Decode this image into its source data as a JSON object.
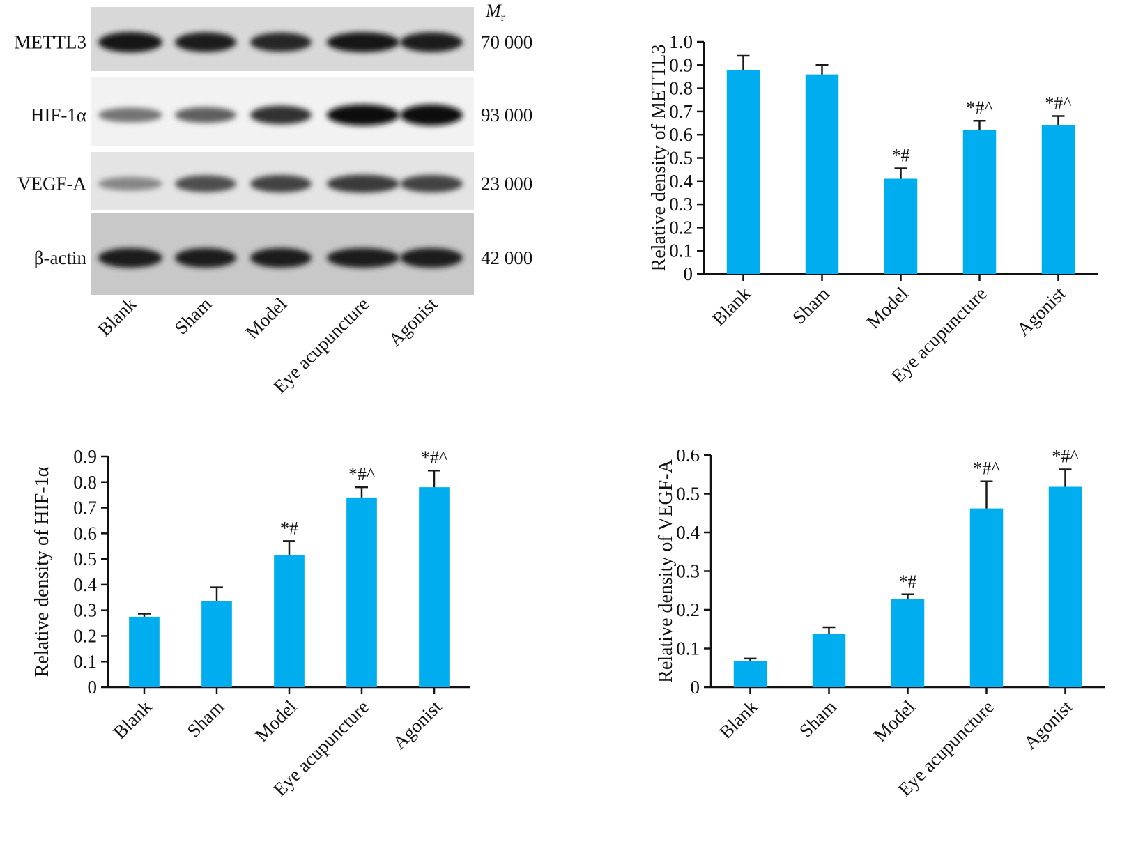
{
  "blot": {
    "mr_label": "M",
    "mr_sub": "r",
    "bands": [
      {
        "label": "METTL3",
        "mr": "70 000",
        "intensity": [
          0.95,
          0.9,
          0.85,
          0.92,
          0.9
        ]
      },
      {
        "label": "HIF-1α",
        "mr": "93 000",
        "intensity": [
          0.45,
          0.55,
          0.8,
          1.0,
          1.0
        ]
      },
      {
        "label": "VEGF-A",
        "mr": "23 000",
        "intensity": [
          0.35,
          0.65,
          0.7,
          0.75,
          0.7
        ]
      },
      {
        "label": "β-actin",
        "mr": "42 000",
        "intensity": [
          0.9,
          0.9,
          0.9,
          0.9,
          0.9
        ]
      }
    ],
    "lanes": [
      "Blank",
      "Sham",
      "Model",
      "Eye acupuncture",
      "Agonist"
    ]
  },
  "colors": {
    "bar": "#00aeef",
    "error": "#1a1a1a"
  },
  "chart_data": [
    {
      "id": "mettl3",
      "type": "bar",
      "categories": [
        "Blank",
        "Sham",
        "Model",
        "Eye acupuncture",
        "Agonist"
      ],
      "values": [
        0.88,
        0.86,
        0.41,
        0.62,
        0.64
      ],
      "errors": [
        0.06,
        0.04,
        0.045,
        0.04,
        0.04
      ],
      "annotations": [
        "",
        "",
        "*#",
        "*#^",
        "*#^"
      ],
      "ylabel": "Relative density of METTL3",
      "ylim": [
        0,
        1.0
      ],
      "yticks": [
        "0",
        "0.1",
        "0.2",
        "0.3",
        "0.4",
        "0.5",
        "0.6",
        "0.7",
        "0.8",
        "0.9",
        "1.0"
      ]
    },
    {
      "id": "hif",
      "type": "bar",
      "categories": [
        "Blank",
        "Sham",
        "Model",
        "Eye acupuncture",
        "Agonist"
      ],
      "values": [
        0.275,
        0.335,
        0.515,
        0.74,
        0.78
      ],
      "errors": [
        0.012,
        0.055,
        0.055,
        0.04,
        0.065
      ],
      "annotations": [
        "",
        "",
        "*#",
        "*#^",
        "*#^"
      ],
      "ylabel": "Relative density of HIF-1α",
      "ylim": [
        0,
        0.9
      ],
      "yticks": [
        "0",
        "0.1",
        "0.2",
        "0.3",
        "0.4",
        "0.5",
        "0.6",
        "0.7",
        "0.8",
        "0.9"
      ]
    },
    {
      "id": "vegf",
      "type": "bar",
      "categories": [
        "Blank",
        "Sham",
        "Model",
        "Eye acupuncture",
        "Agonist"
      ],
      "values": [
        0.068,
        0.137,
        0.228,
        0.462,
        0.518
      ],
      "errors": [
        0.006,
        0.018,
        0.012,
        0.07,
        0.045
      ],
      "annotations": [
        "",
        "",
        "*#",
        "*#^",
        "*#^"
      ],
      "ylabel": "Relative density of VEGF-A",
      "ylim": [
        0,
        0.6
      ],
      "yticks": [
        "0",
        "0.1",
        "0.2",
        "0.3",
        "0.4",
        "0.5",
        "0.6"
      ]
    }
  ]
}
